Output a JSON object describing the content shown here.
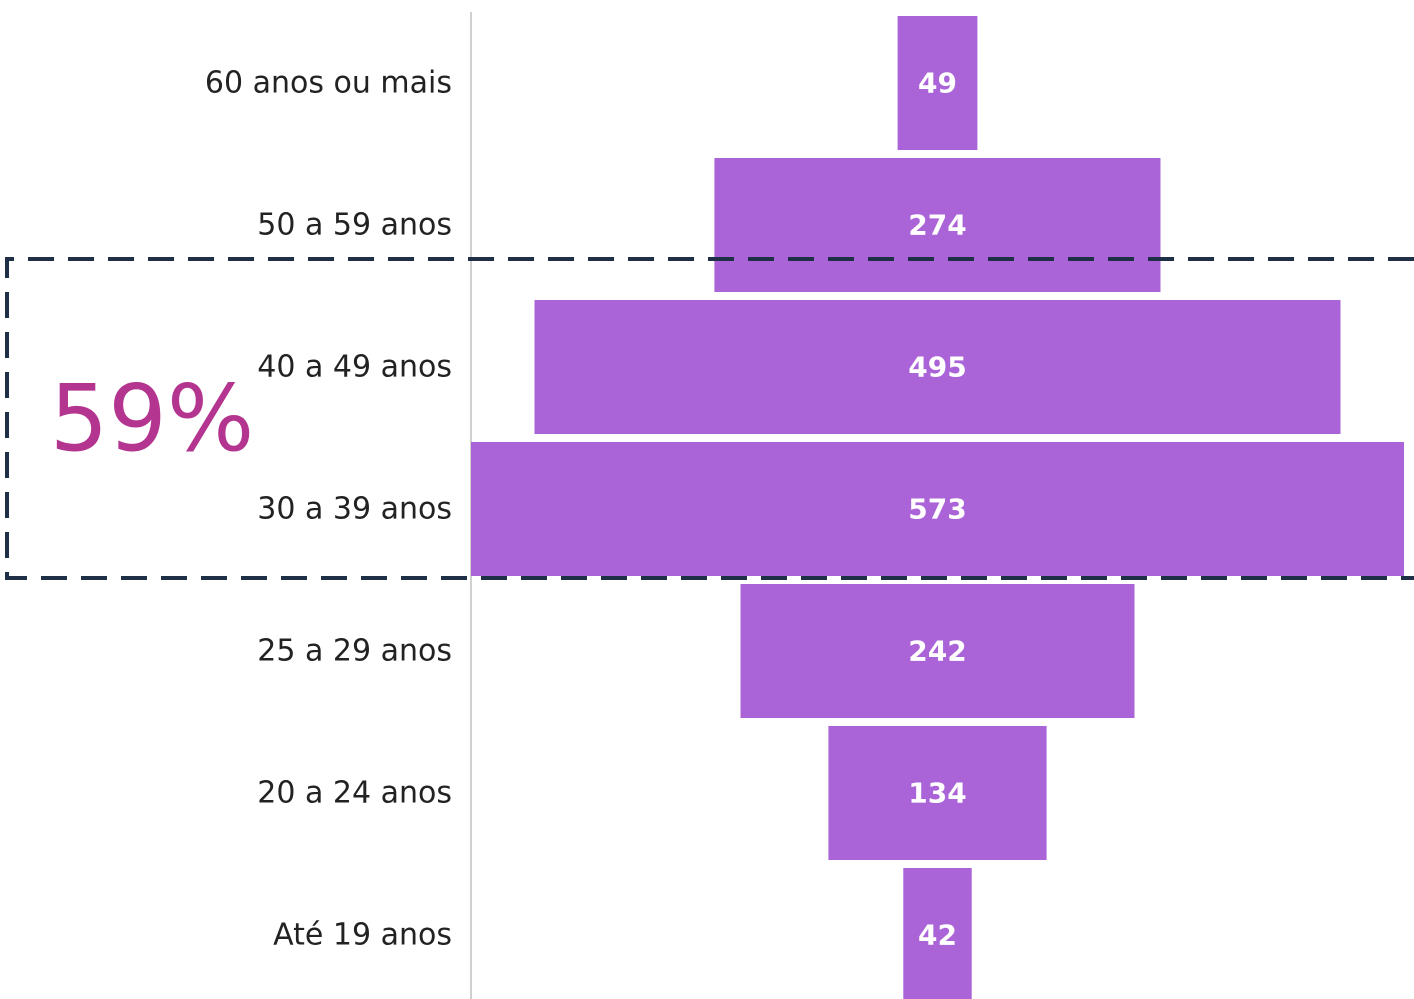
{
  "chart_data": {
    "type": "bar",
    "orientation": "horizontal-centered",
    "categories": [
      "60 anos ou mais",
      "50 a 59 anos",
      "40 a 49 anos",
      "30 a 39 anos",
      "25 a 29 anos",
      "20 a 24 anos",
      "Até 19 anos"
    ],
    "values": [
      49,
      274,
      495,
      573,
      242,
      134,
      42
    ],
    "title": "",
    "xlabel": "",
    "ylabel": "",
    "xlim": [
      0,
      573
    ],
    "grid": false,
    "legend": "none",
    "highlight": {
      "label": "59%",
      "categories": [
        "40 a 49 anos",
        "30 a 39 anos"
      ],
      "style": "dashed-box"
    }
  },
  "colors": {
    "bar": "#aa64d8",
    "value_text": "#ffffff",
    "category_text": "#222222",
    "highlight_text": "#b3358f",
    "highlight_border": "#1f2f45",
    "axis_line": "#d0d0d0"
  }
}
